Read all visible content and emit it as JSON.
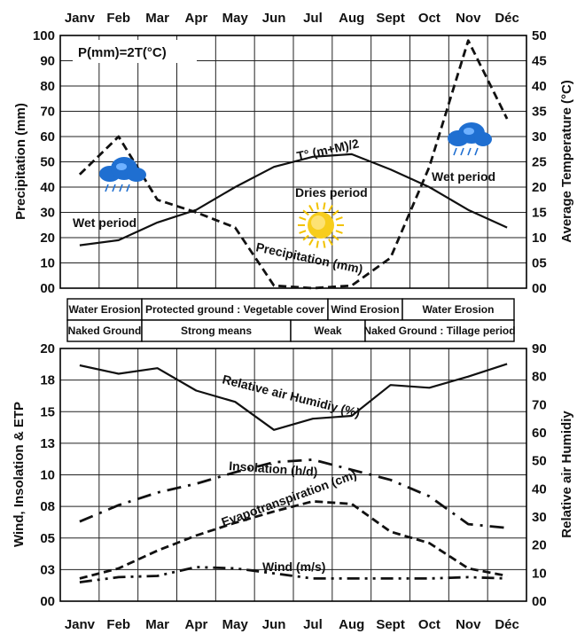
{
  "months": [
    "Janv",
    "Feb",
    "Mar",
    "Apr",
    "May",
    "Jun",
    "Jul",
    "Aug",
    "Sept",
    "Oct",
    "Nov",
    "Déc"
  ],
  "chart_data": [
    {
      "type": "line",
      "formula": "P(mm)=2T(°C)",
      "xlabel": "",
      "ylabel": "Precipitation (mm)",
      "y2label": "Average Temperature (°C)",
      "ylim": [
        0,
        100
      ],
      "y2lim": [
        0,
        50
      ],
      "yticks": [
        "00",
        "10",
        "20",
        "30",
        "40",
        "50",
        "60",
        "70",
        "80",
        "90",
        "100"
      ],
      "y2ticks": [
        "00",
        "05",
        "10",
        "15",
        "20",
        "25",
        "30",
        "35",
        "40",
        "45",
        "50"
      ],
      "grid": true,
      "categories": [
        "Janv",
        "Feb",
        "Mar",
        "Apr",
        "May",
        "Jun",
        "Jul",
        "Aug",
        "Sept",
        "Oct",
        "Nov",
        "Déc"
      ],
      "series": [
        {
          "name": "T° (m+M)/2",
          "axis": "right",
          "style": "solid",
          "values": [
            8.5,
            9.5,
            13,
            15.5,
            20,
            24,
            26,
            26.5,
            23.5,
            20,
            15.5,
            12
          ]
        },
        {
          "name": "Precipitation (mm)",
          "axis": "left",
          "style": "dashed",
          "values": [
            45,
            60,
            35,
            30,
            24,
            1,
            0,
            1,
            12,
            48,
            98,
            67
          ]
        }
      ],
      "annotations": [
        "Wet period",
        "Dries period",
        "Wet period"
      ],
      "colors": {
        "line": "#111111",
        "sun": "#f2c200",
        "cloud": "#1f6fd1"
      }
    },
    {
      "type": "table",
      "rows": [
        [
          {
            "text": "Water Erosion",
            "span": 2
          },
          {
            "text": "Protected ground : Vegetable cover",
            "span": 5
          },
          {
            "text": "Wind Erosion",
            "span": 2
          },
          {
            "text": "Water Erosion",
            "span": 3
          }
        ],
        [
          {
            "text": "Naked Ground",
            "span": 2
          },
          {
            "text": "Strong means",
            "span": 4
          },
          {
            "text": "Weak",
            "span": 2
          },
          {
            "text": "Naked Ground : Tillage period",
            "span": 4
          }
        ]
      ]
    },
    {
      "type": "line",
      "xlabel": "",
      "ylabel": "Wind, Insolation & ETP",
      "y2label": "Relative air  Humidiy",
      "ylim": [
        0,
        20
      ],
      "y2lim": [
        0,
        90
      ],
      "yticks": [
        "00",
        "03",
        "05",
        "08",
        "10",
        "13",
        "15",
        "18",
        "20"
      ],
      "y2ticks": [
        "00",
        "10",
        "20",
        "30",
        "40",
        "50",
        "60",
        "70",
        "80",
        "90"
      ],
      "grid": true,
      "categories": [
        "Janv",
        "Feb",
        "Mar",
        "Apr",
        "May",
        "Jun",
        "Jul",
        "Aug",
        "Sept",
        "Oct",
        "Nov",
        "Déc"
      ],
      "series": [
        {
          "name": "Relative air Humidiy (%)",
          "axis": "right",
          "style": "solid",
          "values": [
            84,
            81,
            83,
            75,
            71,
            61,
            65,
            66,
            77,
            76,
            80,
            84.5
          ]
        },
        {
          "name": "Insolation (h/d)",
          "axis": "left",
          "style": "dash-dot",
          "values": [
            6.3,
            7.6,
            8.6,
            9.3,
            10.2,
            11,
            11.2,
            10.4,
            9.6,
            8.3,
            6.1,
            5.8
          ]
        },
        {
          "name": "Evapotranspiration (cm)",
          "axis": "left",
          "style": "dashed",
          "values": [
            1.8,
            2.6,
            4,
            5.2,
            6.2,
            7.1,
            7.9,
            7.7,
            5.5,
            4.6,
            2.6,
            2
          ]
        },
        {
          "name": "Wind (m/s)",
          "axis": "left",
          "style": "dash-dot-double",
          "values": [
            1.5,
            1.9,
            2,
            2.7,
            2.6,
            2.2,
            1.8,
            1.8,
            1.8,
            1.8,
            1.9,
            1.8
          ]
        }
      ]
    }
  ]
}
